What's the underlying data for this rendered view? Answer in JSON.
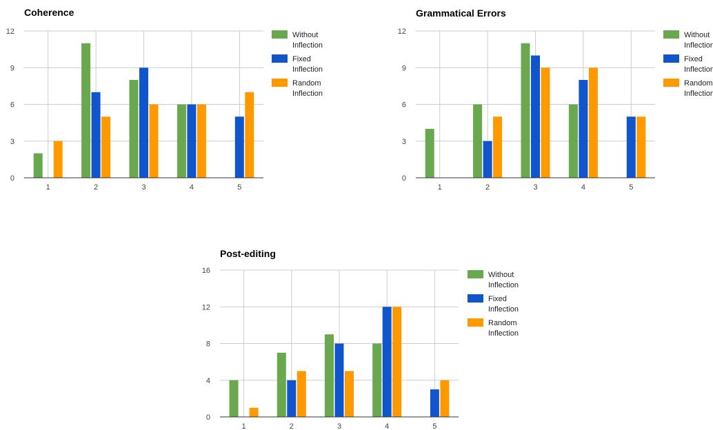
{
  "series_styles": [
    {
      "color": "#6aa84f"
    },
    {
      "color": "#1155cc"
    },
    {
      "color": "#ff9900"
    }
  ],
  "chart_data": [
    {
      "type": "bar",
      "title": "Coherence",
      "categories": [
        "1",
        "2",
        "3",
        "4",
        "5"
      ],
      "ylim": [
        0,
        12
      ],
      "yticks": [
        "0",
        "3",
        "6",
        "9",
        "12"
      ],
      "series": [
        {
          "name_lines": [
            "Without",
            "Inflection"
          ],
          "values": [
            2,
            11,
            8,
            6,
            0
          ]
        },
        {
          "name_lines": [
            "Fixed",
            "Inflection"
          ],
          "values": [
            0,
            7,
            9,
            6,
            5
          ]
        },
        {
          "name_lines": [
            "Random",
            "Inflection"
          ],
          "values": [
            3,
            5,
            6,
            6,
            7
          ]
        }
      ],
      "grid": true,
      "legend_position": "right"
    },
    {
      "type": "bar",
      "title": "Grammatical Errors",
      "categories": [
        "1",
        "2",
        "3",
        "4",
        "5"
      ],
      "ylim": [
        0,
        12
      ],
      "yticks": [
        "0",
        "3",
        "6",
        "9",
        "12"
      ],
      "series": [
        {
          "name_lines": [
            "Without",
            "Inflection"
          ],
          "values": [
            4,
            6,
            11,
            6,
            0
          ]
        },
        {
          "name_lines": [
            "Fixed",
            "Inflection"
          ],
          "values": [
            0,
            3,
            10,
            8,
            5
          ]
        },
        {
          "name_lines": [
            "Random",
            "Inflection"
          ],
          "values": [
            0,
            5,
            9,
            9,
            5
          ]
        }
      ],
      "grid": true,
      "legend_position": "right"
    },
    {
      "type": "bar",
      "title": "Post-editing",
      "categories": [
        "1",
        "2",
        "3",
        "4",
        "5"
      ],
      "ylim": [
        0,
        16
      ],
      "yticks": [
        "0",
        "4",
        "8",
        "12",
        "16"
      ],
      "series": [
        {
          "name_lines": [
            "Without",
            "Inflection"
          ],
          "values": [
            4,
            7,
            9,
            8,
            0
          ]
        },
        {
          "name_lines": [
            "Fixed",
            "Inflection"
          ],
          "values": [
            0,
            4,
            8,
            12,
            3
          ]
        },
        {
          "name_lines": [
            "Random",
            "Inflection"
          ],
          "values": [
            1,
            5,
            5,
            12,
            4
          ]
        }
      ],
      "grid": true,
      "legend_position": "right"
    }
  ]
}
